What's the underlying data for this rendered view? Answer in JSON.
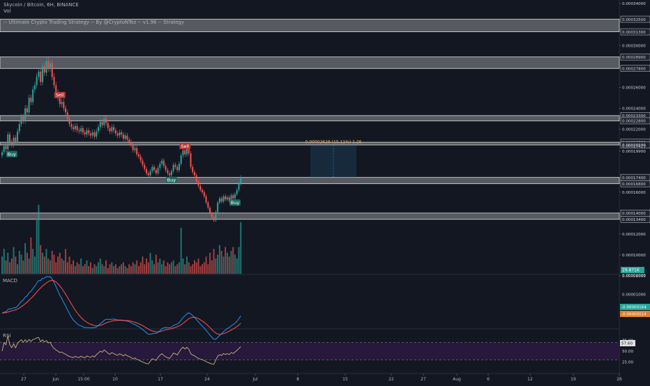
{
  "header": {
    "title": "Skycoin / Bitcoin, 6H, BINANCE",
    "volume_label": "Vol",
    "strategy_label": "-- Ultimate Crypto Trading Strategy -- By @CryptoNTez -- v1.96 -- Strategy"
  },
  "panels": {
    "macd_label": "MACD",
    "rsi_label": "RSI"
  },
  "colors": {
    "background": "#131722",
    "bull": "#26a69a",
    "bear": "#ef5350",
    "macd_line": "#2196f3",
    "signal_line": "#ff5252",
    "rsi_line": "#c7b57a",
    "rsi_band": "#2a1a3e",
    "zone": "#c8c8c8"
  },
  "chart_data": {
    "type": "candlestick",
    "x_ticks": [
      "27",
      "Jun",
      "15:00",
      "10",
      "17",
      "24",
      "Jul",
      "8",
      "15",
      "22",
      "27",
      "Aug",
      "6",
      "12",
      "19",
      "26"
    ],
    "price_axis_ticks": [
      "0.00034000",
      "0.00032500",
      "0.00031300",
      "0.00030000",
      "0.00028900",
      "0.00027800",
      "0.00026000",
      "0.00024000",
      "0.00023300",
      "0.00022800",
      "0.00022000",
      "0.00020760",
      "0.00020500",
      "0.00020429",
      "0.00019900",
      "0.00017400",
      "0.00016800",
      "0.00016000",
      "0.00014000",
      "0.00013400",
      "0.00012000",
      "0.00010000",
      "0.00008000"
    ],
    "price_range": [
      8.2e-05,
      0.00034
    ],
    "volume_readout": "29.871K",
    "measure_label": "0.00002626 (15.11%) 1.26",
    "resistance_zones": [
      {
        "low": 0.000313,
        "high": 0.000325
      },
      {
        "low": 0.000278,
        "high": 0.000289
      },
      {
        "low": 0.000228,
        "high": 0.000233
      },
      {
        "low": 0.000205,
        "high": 0.0002076
      },
      {
        "low": 0.000168,
        "high": 0.000174
      },
      {
        "low": 0.000134,
        "high": 0.00014
      }
    ],
    "signals": [
      {
        "label": "Buy",
        "type": "buy",
        "index": 5
      },
      {
        "label": "Sell",
        "type": "sell",
        "index": 30
      },
      {
        "label": "Buy",
        "type": "buy",
        "index": 88
      },
      {
        "label": "Sell",
        "type": "sell",
        "index": 95
      },
      {
        "label": "Buy",
        "type": "buy",
        "index": 121
      }
    ],
    "price_close": [
      0.000198,
      0.000204,
      0.000201,
      0.000215,
      0.000208,
      0.000205,
      0.000212,
      0.000207,
      0.000218,
      0.000225,
      0.000232,
      0.000228,
      0.00024,
      0.000236,
      0.00025,
      0.000246,
      0.000258,
      0.000262,
      0.00027,
      0.000275,
      0.000265,
      0.00028,
      0.000274,
      0.000285,
      0.000278,
      0.000283,
      0.00027,
      0.000262,
      0.000255,
      0.00025,
      0.000244,
      0.000246,
      0.00024,
      0.000236,
      0.00023,
      0.000225,
      0.000222,
      0.00022,
      0.000223,
      0.000219,
      0.000218,
      0.000221,
      0.000217,
      0.000215,
      0.000219,
      0.000216,
      0.000214,
      0.000217,
      0.000213,
      0.000218,
      0.000222,
      0.000227,
      0.000224,
      0.00023,
      0.000226,
      0.000221,
      0.000218,
      0.000222,
      0.000219,
      0.000216,
      0.000214,
      0.000217,
      0.000215,
      0.000211,
      0.000214,
      0.00021,
      0.000208,
      0.000205,
      0.0002,
      0.000202,
      0.000196,
      0.000194,
      0.00019,
      0.000186,
      0.000182,
      0.000178,
      0.000176,
      0.00018,
      0.000184,
      0.000181,
      0.000178,
      0.000183,
      0.000187,
      0.00019,
      0.000185,
      0.000181,
      0.000178,
      0.000176,
      0.00018,
      0.000186,
      0.000184,
      0.000181,
      0.000187,
      0.000195,
      0.0002,
      0.000196,
      0.000201,
      0.000197,
      0.000184,
      0.000179,
      0.000176,
      0.00017,
      0.000166,
      0.000162,
      0.00016,
      0.000156,
      0.00015,
      0.000145,
      0.00014,
      0.000136,
      0.000133,
      0.000141,
      0.00015,
      0.000154,
      0.000151,
      0.000156,
      0.000153,
      0.000155,
      0.000152,
      0.000157,
      0.000154,
      0.000158,
      0.000162,
      0.000168,
      0.000174
    ],
    "volume": [
      9,
      13,
      7,
      11,
      6,
      8,
      14,
      9,
      5,
      12,
      10,
      7,
      16,
      11,
      8,
      19,
      13,
      9,
      28,
      36,
      15,
      11,
      9,
      13,
      8,
      7,
      12,
      10,
      6,
      9,
      11,
      8,
      7,
      13,
      6,
      9,
      5,
      7,
      4,
      6,
      5,
      8,
      4,
      5,
      7,
      4,
      6,
      3,
      5,
      4,
      6,
      8,
      5,
      4,
      7,
      3,
      5,
      6,
      4,
      5,
      3,
      4,
      5,
      6,
      4,
      3,
      5,
      4,
      6,
      5,
      7,
      4,
      6,
      9,
      5,
      8,
      6,
      11,
      7,
      5,
      10,
      6,
      8,
      5,
      7,
      4,
      6,
      5,
      6,
      7,
      4,
      5,
      6,
      24,
      8,
      5,
      9,
      6,
      4,
      5,
      7,
      6,
      8,
      4,
      5,
      6,
      9,
      5,
      11,
      7,
      13,
      8,
      10,
      15,
      12,
      9,
      14,
      11,
      9,
      12,
      14,
      10,
      8,
      14,
      27
    ],
    "macd_axis_ticks": [
      "0.00002000",
      "0.00001000",
      "0.00000000"
    ],
    "macd_readouts": [
      "-0.00000164",
      "-0.00000514"
    ],
    "rsi_axis_ticks": [
      "75.00",
      "50.00",
      "25.00"
    ],
    "rsi_readout": "57.60",
    "rsi_bands": [
      30,
      70
    ]
  }
}
